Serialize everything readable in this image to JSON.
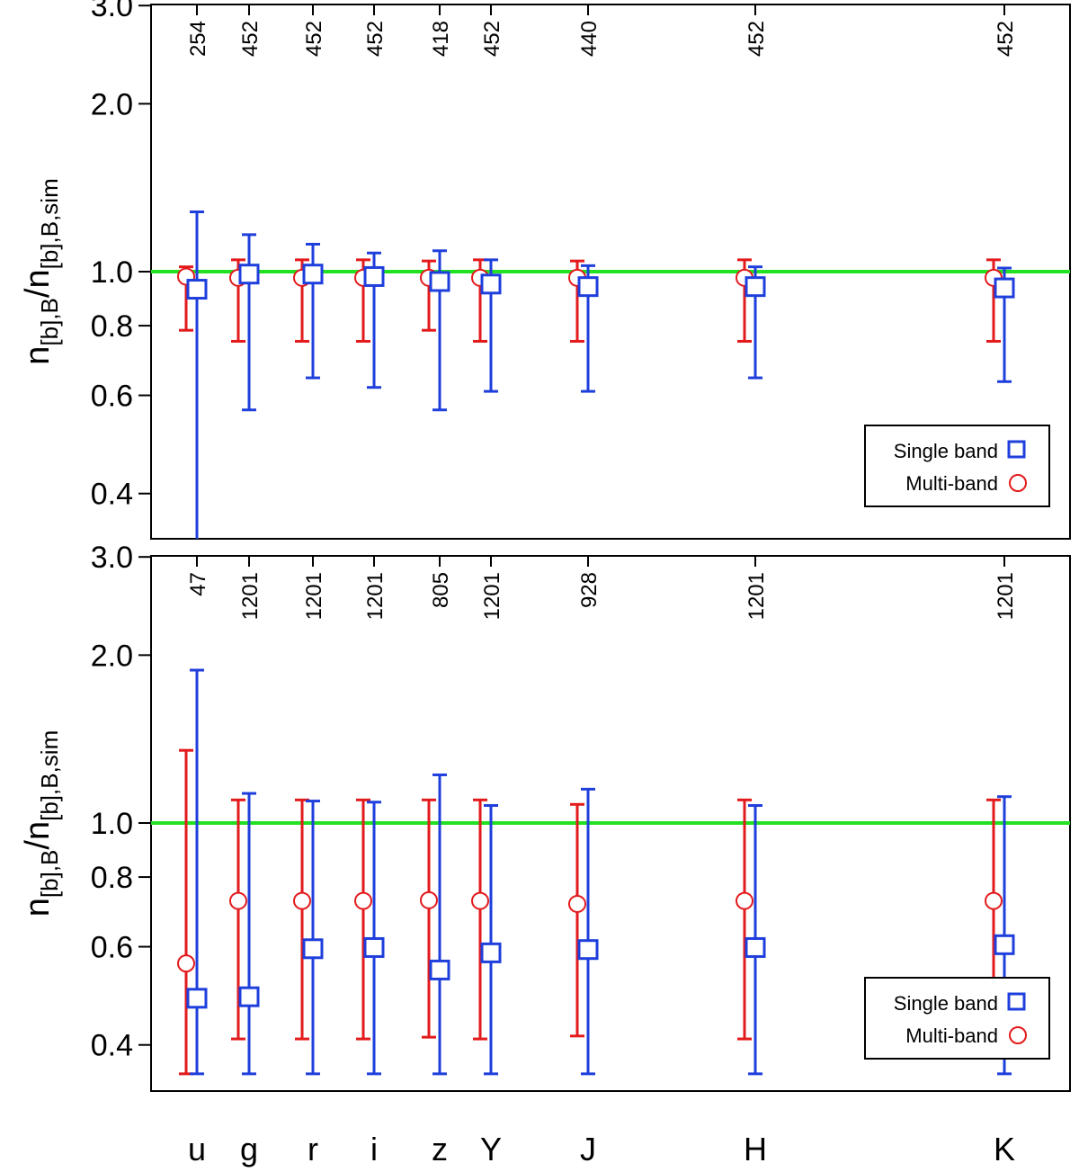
{
  "chart_data": [
    {
      "type": "scatter",
      "panel": "top",
      "ylabel": {
        "main1": "n",
        "sub1": "[b],B",
        "main2": "/n",
        "sub2": "[b],B,sim"
      },
      "yscale": "log",
      "ylim": [
        0.33,
        3.0
      ],
      "yticks": [
        "3.0",
        "2.0",
        "1.0",
        "0.8",
        "0.6",
        "0.4"
      ],
      "reference_line": 1.0,
      "categories": [
        "u",
        "g",
        "r",
        "i",
        "z",
        "Y",
        "J",
        "H",
        "K"
      ],
      "counts": [
        "254",
        "452",
        "452",
        "452",
        "418",
        "452",
        "440",
        "452",
        "452"
      ],
      "series": [
        {
          "name": "Single band",
          "color": "#1f3fdc",
          "marker": "square",
          "values": [
            0.93,
            0.99,
            0.99,
            0.98,
            0.96,
            0.95,
            0.94,
            0.94,
            0.935
          ],
          "err_low": [
            0.33,
            0.565,
            0.645,
            0.62,
            0.565,
            0.61,
            0.61,
            0.645,
            0.635
          ],
          "err_high": [
            1.28,
            1.165,
            1.12,
            1.08,
            1.09,
            1.05,
            1.025,
            1.02,
            1.015
          ]
        },
        {
          "name": "Multi-band",
          "color": "#e31a1c",
          "marker": "circle",
          "values": [
            0.98,
            0.975,
            0.975,
            0.975,
            0.975,
            0.975,
            0.975,
            0.975,
            0.975
          ],
          "err_low": [
            0.785,
            0.75,
            0.75,
            0.75,
            0.785,
            0.75,
            0.75,
            0.75,
            0.75
          ],
          "err_high": [
            1.02,
            1.05,
            1.05,
            1.05,
            1.045,
            1.05,
            1.045,
            1.05,
            1.05
          ]
        }
      ],
      "legend": {
        "position": "bottom-right",
        "entries": [
          "Single band",
          "Multi-band"
        ]
      }
    },
    {
      "type": "scatter",
      "panel": "bottom",
      "ylabel": {
        "main1": "n",
        "sub1": "[b],B",
        "main2": "/n",
        "sub2": "[b],B,sim"
      },
      "yscale": "log",
      "ylim": [
        0.355,
        3.0
      ],
      "yticks": [
        "3.0",
        "2.0",
        "1.0",
        "0.8",
        "0.6",
        "0.4"
      ],
      "reference_line": 1.0,
      "categories": [
        "u",
        "g",
        "r",
        "i",
        "z",
        "Y",
        "J",
        "H",
        "K"
      ],
      "counts": [
        "47",
        "1201",
        "1201",
        "1201",
        "805",
        "1201",
        "928",
        "1201",
        "1201"
      ],
      "series": [
        {
          "name": "Single band",
          "color": "#1f3fdc",
          "marker": "square",
          "values": [
            0.485,
            0.488,
            0.595,
            0.598,
            0.545,
            0.585,
            0.593,
            0.598,
            0.605
          ],
          "err_low": [
            0.355,
            0.355,
            0.355,
            0.355,
            0.355,
            0.355,
            0.355,
            0.355,
            0.355
          ],
          "err_high": [
            1.88,
            1.13,
            1.095,
            1.09,
            1.22,
            1.075,
            1.15,
            1.075,
            1.115
          ]
        },
        {
          "name": "Multi-band",
          "color": "#e31a1c",
          "marker": "circle",
          "values": [
            0.56,
            0.725,
            0.725,
            0.725,
            0.727,
            0.725,
            0.716,
            0.725,
            0.725
          ],
          "err_low": [
            0.355,
            0.41,
            0.41,
            0.41,
            0.413,
            0.41,
            0.415,
            0.41,
            0.41
          ],
          "err_high": [
            1.35,
            1.1,
            1.1,
            1.1,
            1.1,
            1.1,
            1.08,
            1.1,
            1.1
          ]
        }
      ],
      "legend": {
        "position": "bottom-right",
        "entries": [
          "Single band",
          "Multi-band"
        ]
      }
    }
  ]
}
